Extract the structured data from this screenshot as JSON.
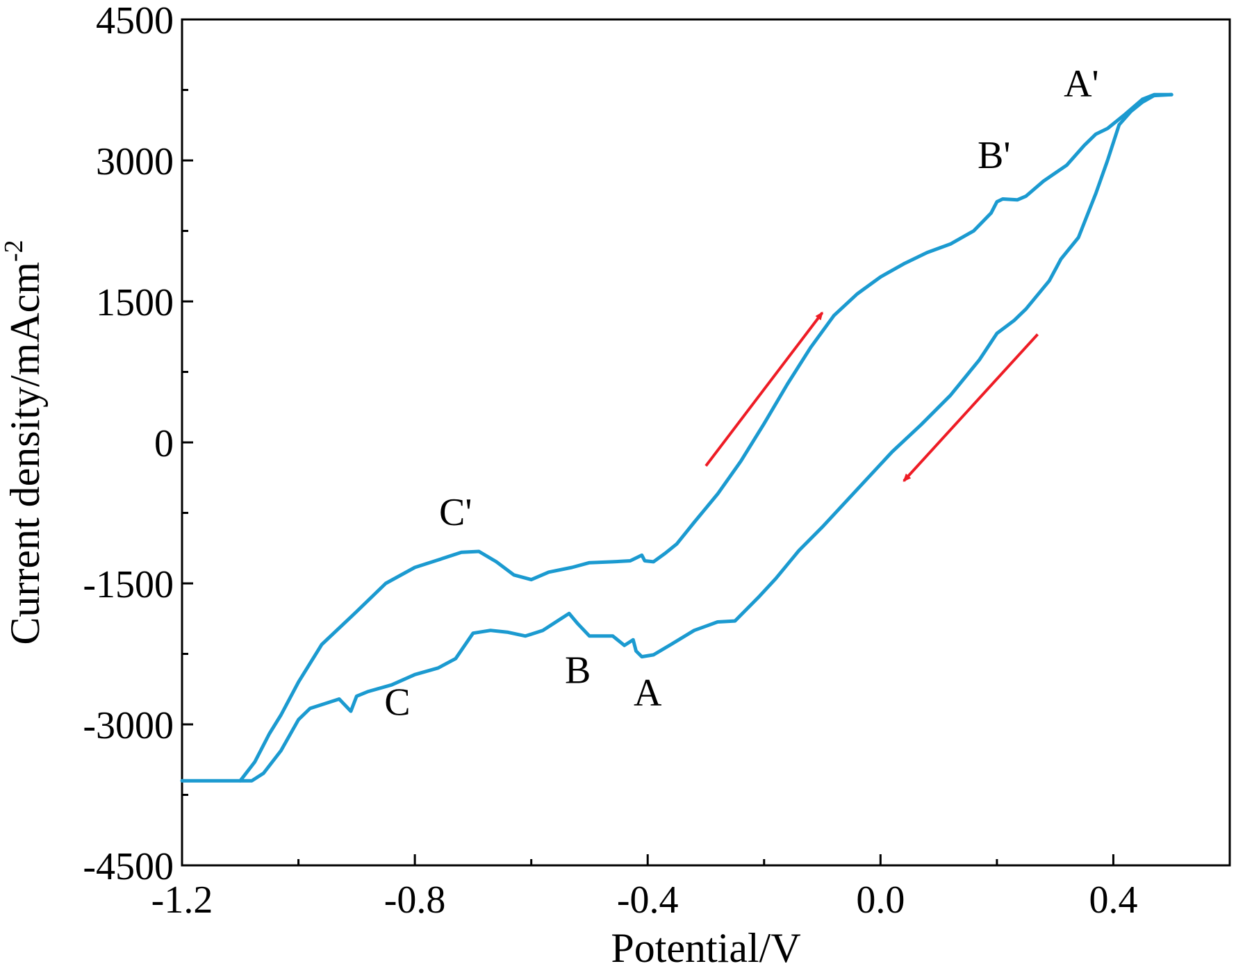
{
  "chart_data": {
    "type": "line",
    "title": "",
    "xlabel": "Potential/V",
    "ylabel": "Current density/mAcm",
    "ylabel_sup": "-2",
    "xlim": [
      -1.2,
      0.6
    ],
    "ylim": [
      -4500,
      4500
    ],
    "xticks": [
      -1.2,
      -0.8,
      -0.4,
      0.0,
      0.4
    ],
    "xtick_labels": [
      "-1.2",
      "-0.8",
      "-0.4",
      "0.0",
      "0.4"
    ],
    "yticks": [
      -4500,
      -3000,
      -1500,
      0,
      1500,
      3000,
      4500
    ],
    "ytick_labels": [
      "-4500",
      "-3000",
      "-1500",
      "0",
      "1500",
      "3000",
      "4500"
    ],
    "grid": false,
    "series": [
      {
        "name": "forward scan",
        "color": "#1b9ad0",
        "points": [
          [
            -1.2,
            -3600
          ],
          [
            -1.1,
            -3600
          ],
          [
            -1.075,
            -3400
          ],
          [
            -1.05,
            -3100
          ],
          [
            -1.03,
            -2900
          ],
          [
            -1.0,
            -2550
          ],
          [
            -0.96,
            -2150
          ],
          [
            -0.9,
            -1800
          ],
          [
            -0.85,
            -1500
          ],
          [
            -0.8,
            -1330
          ],
          [
            -0.76,
            -1250
          ],
          [
            -0.72,
            -1170
          ],
          [
            -0.69,
            -1160
          ],
          [
            -0.66,
            -1270
          ],
          [
            -0.63,
            -1410
          ],
          [
            -0.6,
            -1460
          ],
          [
            -0.57,
            -1380
          ],
          [
            -0.53,
            -1330
          ],
          [
            -0.5,
            -1280
          ],
          [
            -0.46,
            -1270
          ],
          [
            -0.43,
            -1260
          ],
          [
            -0.41,
            -1200
          ],
          [
            -0.405,
            -1260
          ],
          [
            -0.39,
            -1270
          ],
          [
            -0.37,
            -1180
          ],
          [
            -0.35,
            -1080
          ],
          [
            -0.32,
            -850
          ],
          [
            -0.28,
            -550
          ],
          [
            -0.24,
            -200
          ],
          [
            -0.2,
            200
          ],
          [
            -0.16,
            620
          ],
          [
            -0.12,
            1010
          ],
          [
            -0.08,
            1350
          ],
          [
            -0.04,
            1580
          ],
          [
            0.0,
            1760
          ],
          [
            0.04,
            1900
          ],
          [
            0.08,
            2020
          ],
          [
            0.12,
            2110
          ],
          [
            0.16,
            2250
          ],
          [
            0.19,
            2440
          ],
          [
            0.2,
            2560
          ],
          [
            0.21,
            2590
          ],
          [
            0.235,
            2580
          ],
          [
            0.25,
            2620
          ],
          [
            0.28,
            2780
          ],
          [
            0.32,
            2950
          ],
          [
            0.35,
            3160
          ],
          [
            0.37,
            3280
          ],
          [
            0.39,
            3340
          ],
          [
            0.42,
            3490
          ],
          [
            0.45,
            3650
          ],
          [
            0.47,
            3700
          ],
          [
            0.5,
            3700
          ]
        ]
      },
      {
        "name": "reverse scan",
        "color": "#1b9ad0",
        "points": [
          [
            0.5,
            3700
          ],
          [
            0.47,
            3690
          ],
          [
            0.45,
            3620
          ],
          [
            0.43,
            3520
          ],
          [
            0.41,
            3380
          ],
          [
            0.39,
            3000
          ],
          [
            0.37,
            2650
          ],
          [
            0.34,
            2180
          ],
          [
            0.31,
            1950
          ],
          [
            0.29,
            1720
          ],
          [
            0.25,
            1420
          ],
          [
            0.23,
            1300
          ],
          [
            0.2,
            1160
          ],
          [
            0.17,
            880
          ],
          [
            0.12,
            500
          ],
          [
            0.07,
            190
          ],
          [
            0.02,
            -100
          ],
          [
            -0.04,
            -500
          ],
          [
            -0.1,
            -900
          ],
          [
            -0.14,
            -1150
          ],
          [
            -0.18,
            -1450
          ],
          [
            -0.21,
            -1650
          ],
          [
            -0.25,
            -1900
          ],
          [
            -0.28,
            -1910
          ],
          [
            -0.32,
            -2000
          ],
          [
            -0.36,
            -2150
          ],
          [
            -0.39,
            -2260
          ],
          [
            -0.41,
            -2280
          ],
          [
            -0.42,
            -2220
          ],
          [
            -0.425,
            -2100
          ],
          [
            -0.44,
            -2160
          ],
          [
            -0.46,
            -2060
          ],
          [
            -0.5,
            -2060
          ],
          [
            -0.52,
            -1930
          ],
          [
            -0.535,
            -1820
          ],
          [
            -0.55,
            -1880
          ],
          [
            -0.58,
            -2000
          ],
          [
            -0.61,
            -2060
          ],
          [
            -0.64,
            -2020
          ],
          [
            -0.67,
            -2000
          ],
          [
            -0.7,
            -2030
          ],
          [
            -0.73,
            -2300
          ],
          [
            -0.76,
            -2400
          ],
          [
            -0.8,
            -2470
          ],
          [
            -0.84,
            -2580
          ],
          [
            -0.88,
            -2650
          ],
          [
            -0.9,
            -2700
          ],
          [
            -0.91,
            -2860
          ],
          [
            -0.93,
            -2730
          ],
          [
            -0.96,
            -2790
          ],
          [
            -0.98,
            -2830
          ],
          [
            -1.0,
            -2950
          ],
          [
            -1.03,
            -3280
          ],
          [
            -1.06,
            -3520
          ],
          [
            -1.08,
            -3600
          ],
          [
            -1.1,
            -3600
          ]
        ]
      }
    ],
    "arrows": [
      {
        "name": "forward-direction-arrow",
        "color": "#ee1c25",
        "from": [
          -0.3,
          -250
        ],
        "to": [
          -0.1,
          1380
        ]
      },
      {
        "name": "reverse-direction-arrow",
        "color": "#ee1c25",
        "from": [
          0.27,
          1150
        ],
        "to": [
          0.04,
          -410
        ]
      }
    ],
    "annotations": [
      {
        "name": "annot-a-prime",
        "text": "A'",
        "x": 0.345,
        "y": 3680
      },
      {
        "name": "annot-b-prime",
        "text": "B'",
        "x": 0.195,
        "y": 2920
      },
      {
        "name": "annot-c-prime",
        "text": "C'",
        "x": -0.73,
        "y": -880
      },
      {
        "name": "annot-a",
        "text": "A",
        "x": -0.4,
        "y": -2800
      },
      {
        "name": "annot-b",
        "text": "B",
        "x": -0.52,
        "y": -2560
      },
      {
        "name": "annot-c",
        "text": "C",
        "x": -0.83,
        "y": -2900
      }
    ]
  }
}
